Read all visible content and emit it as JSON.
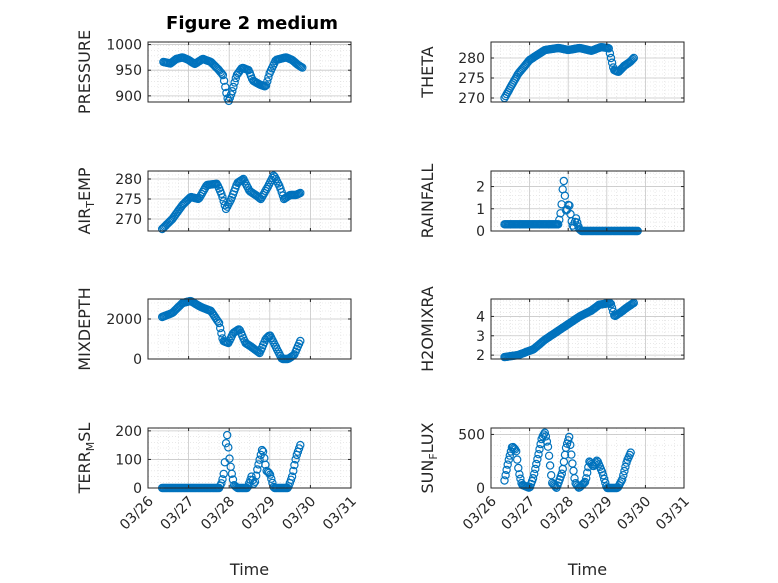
{
  "figure": {
    "title": "Figure 2 medium",
    "time_label": "Time",
    "marker_color": "#0072BD",
    "date_ticks": [
      "03/26",
      "03/27",
      "03/28",
      "03/29",
      "03/30",
      "03/31"
    ]
  },
  "chart_data": [
    {
      "type": "scatter",
      "ylabel": "PRESSURE",
      "xlim": [
        "03/26",
        "03/31"
      ],
      "ylim": [
        888,
        1005
      ],
      "yticks": [
        900,
        950,
        1000
      ],
      "anchors": [
        [
          0.38,
          966
        ],
        [
          0.55,
          963
        ],
        [
          0.7,
          972
        ],
        [
          0.85,
          975
        ],
        [
          1.0,
          970
        ],
        [
          1.15,
          962
        ],
        [
          1.35,
          972
        ],
        [
          1.55,
          966
        ],
        [
          1.75,
          950
        ],
        [
          1.85,
          940
        ],
        [
          1.92,
          910
        ],
        [
          1.98,
          888
        ],
        [
          2.08,
          910
        ],
        [
          2.18,
          940
        ],
        [
          2.32,
          955
        ],
        [
          2.48,
          950
        ],
        [
          2.58,
          930
        ],
        [
          2.75,
          922
        ],
        [
          2.9,
          918
        ],
        [
          3.0,
          945
        ],
        [
          3.15,
          970
        ],
        [
          3.4,
          975
        ],
        [
          3.55,
          970
        ],
        [
          3.7,
          960
        ],
        [
          3.8,
          955
        ]
      ],
      "n_points": 120,
      "grid": true
    },
    {
      "type": "scatter",
      "ylabel": "THETA",
      "xlim": [
        "03/26",
        "03/31"
      ],
      "ylim": [
        269,
        284
      ],
      "yticks": [
        270,
        275,
        280
      ],
      "anchors": [
        [
          0.35,
          270
        ],
        [
          0.7,
          276
        ],
        [
          1.0,
          279.5
        ],
        [
          1.4,
          282
        ],
        [
          1.75,
          282.5
        ],
        [
          2.0,
          282
        ],
        [
          2.3,
          282.5
        ],
        [
          2.6,
          281.8
        ],
        [
          2.85,
          282.7
        ],
        [
          3.05,
          282.5
        ],
        [
          3.18,
          277
        ],
        [
          3.3,
          276.5
        ],
        [
          3.45,
          278
        ],
        [
          3.6,
          279
        ],
        [
          3.7,
          280
        ]
      ],
      "n_points": 120,
      "grid": true
    },
    {
      "type": "scatter",
      "ylabel": "AIR",
      "ylabel_subscript": "T",
      "ylabel_suffix": "EMP",
      "xlim": [
        "03/26",
        "03/31"
      ],
      "ylim": [
        267,
        282
      ],
      "yticks": [
        270,
        275,
        280
      ],
      "anchors": [
        [
          0.35,
          267.5
        ],
        [
          0.6,
          270
        ],
        [
          0.85,
          273.5
        ],
        [
          1.05,
          275.5
        ],
        [
          1.25,
          275
        ],
        [
          1.45,
          278.5
        ],
        [
          1.7,
          278.8
        ],
        [
          1.82,
          276
        ],
        [
          1.92,
          272.5
        ],
        [
          2.05,
          275
        ],
        [
          2.2,
          279
        ],
        [
          2.35,
          280
        ],
        [
          2.5,
          277
        ],
        [
          2.65,
          276
        ],
        [
          2.78,
          275
        ],
        [
          2.95,
          278
        ],
        [
          3.1,
          281
        ],
        [
          3.25,
          278
        ],
        [
          3.35,
          275
        ],
        [
          3.5,
          276
        ],
        [
          3.65,
          276
        ],
        [
          3.75,
          276.5
        ]
      ],
      "n_points": 120,
      "grid": true
    },
    {
      "type": "scatter",
      "ylabel": "RAINFALL",
      "xlim": [
        "03/26",
        "03/31"
      ],
      "ylim": [
        0,
        2.7
      ],
      "yticks": [
        0,
        1,
        2
      ],
      "anchors": [
        [
          0.35,
          0.3
        ],
        [
          1.75,
          0.3
        ],
        [
          1.82,
          1.0
        ],
        [
          1.88,
          2.4
        ],
        [
          1.95,
          0.8
        ],
        [
          2.02,
          1.3
        ],
        [
          2.08,
          0.5
        ],
        [
          2.14,
          0.1
        ],
        [
          2.2,
          0.6
        ],
        [
          2.28,
          0.1
        ],
        [
          2.35,
          0.0
        ],
        [
          3.8,
          0.0
        ]
      ],
      "n_points": 120,
      "grid": true
    },
    {
      "type": "scatter",
      "ylabel": "MIXDEPTH",
      "xlim": [
        "03/26",
        "03/31"
      ],
      "ylim": [
        0,
        3000
      ],
      "yticks": [
        0,
        2000
      ],
      "anchors": [
        [
          0.35,
          2100
        ],
        [
          0.6,
          2300
        ],
        [
          0.85,
          2800
        ],
        [
          1.05,
          2900
        ],
        [
          1.3,
          2600
        ],
        [
          1.55,
          2400
        ],
        [
          1.75,
          1800
        ],
        [
          1.85,
          900
        ],
        [
          1.98,
          800
        ],
        [
          2.1,
          1300
        ],
        [
          2.25,
          1500
        ],
        [
          2.4,
          800
        ],
        [
          2.55,
          600
        ],
        [
          2.75,
          300
        ],
        [
          2.9,
          1000
        ],
        [
          3.0,
          1200
        ],
        [
          3.15,
          600
        ],
        [
          3.3,
          0
        ],
        [
          3.45,
          0
        ],
        [
          3.6,
          200
        ],
        [
          3.75,
          900
        ]
      ],
      "n_points": 120,
      "grid": true
    },
    {
      "type": "scatter",
      "ylabel": "H2OMIXRA",
      "xlim": [
        "03/26",
        "03/31"
      ],
      "ylim": [
        1.8,
        4.9
      ],
      "yticks": [
        2,
        3,
        4
      ],
      "anchors": [
        [
          0.35,
          1.9
        ],
        [
          0.7,
          2.0
        ],
        [
          1.1,
          2.3
        ],
        [
          1.4,
          2.8
        ],
        [
          1.7,
          3.2
        ],
        [
          2.0,
          3.6
        ],
        [
          2.3,
          4.0
        ],
        [
          2.6,
          4.3
        ],
        [
          2.8,
          4.6
        ],
        [
          3.1,
          4.7
        ],
        [
          3.2,
          4.0
        ],
        [
          3.35,
          4.2
        ],
        [
          3.55,
          4.5
        ],
        [
          3.7,
          4.7
        ]
      ],
      "n_points": 120,
      "grid": true
    },
    {
      "type": "scatter",
      "ylabel": "TERR",
      "ylabel_subscript": "M",
      "ylabel_suffix": "SL",
      "xlim": [
        "03/26",
        "03/31"
      ],
      "ylim": [
        0,
        210
      ],
      "yticks": [
        0,
        100,
        200
      ],
      "anchors": [
        [
          0.35,
          0
        ],
        [
          1.75,
          0
        ],
        [
          1.82,
          20
        ],
        [
          1.88,
          60
        ],
        [
          1.94,
          200
        ],
        [
          2.0,
          110
        ],
        [
          2.05,
          60
        ],
        [
          2.12,
          10
        ],
        [
          2.2,
          0
        ],
        [
          2.45,
          0
        ],
        [
          2.55,
          40
        ],
        [
          2.62,
          10
        ],
        [
          2.7,
          70
        ],
        [
          2.82,
          140
        ],
        [
          2.92,
          60
        ],
        [
          3.0,
          50
        ],
        [
          3.1,
          0
        ],
        [
          3.45,
          0
        ],
        [
          3.55,
          40
        ],
        [
          3.65,
          110
        ],
        [
          3.75,
          150
        ]
      ],
      "n_points": 120,
      "grid": true
    },
    {
      "type": "scatter",
      "ylabel": "SUN",
      "ylabel_subscript": "F",
      "ylabel_suffix": "LUX",
      "xlim": [
        "03/26",
        "03/31"
      ],
      "ylim": [
        0,
        560
      ],
      "yticks": [
        0,
        500
      ],
      "anchors": [
        [
          0.35,
          70
        ],
        [
          0.45,
          250
        ],
        [
          0.55,
          390
        ],
        [
          0.65,
          350
        ],
        [
          0.72,
          150
        ],
        [
          0.8,
          30
        ],
        [
          1.0,
          0
        ],
        [
          1.1,
          100
        ],
        [
          1.22,
          300
        ],
        [
          1.32,
          470
        ],
        [
          1.4,
          520
        ],
        [
          1.48,
          380
        ],
        [
          1.58,
          50
        ],
        [
          1.7,
          0
        ],
        [
          1.85,
          150
        ],
        [
          1.95,
          390
        ],
        [
          2.03,
          480
        ],
        [
          2.1,
          250
        ],
        [
          2.18,
          50
        ],
        [
          2.28,
          0
        ],
        [
          2.45,
          60
        ],
        [
          2.55,
          250
        ],
        [
          2.65,
          200
        ],
        [
          2.75,
          260
        ],
        [
          2.88,
          150
        ],
        [
          3.0,
          0
        ],
        [
          3.28,
          0
        ],
        [
          3.4,
          80
        ],
        [
          3.52,
          250
        ],
        [
          3.62,
          330
        ]
      ],
      "n_points": 120,
      "grid": true
    }
  ]
}
